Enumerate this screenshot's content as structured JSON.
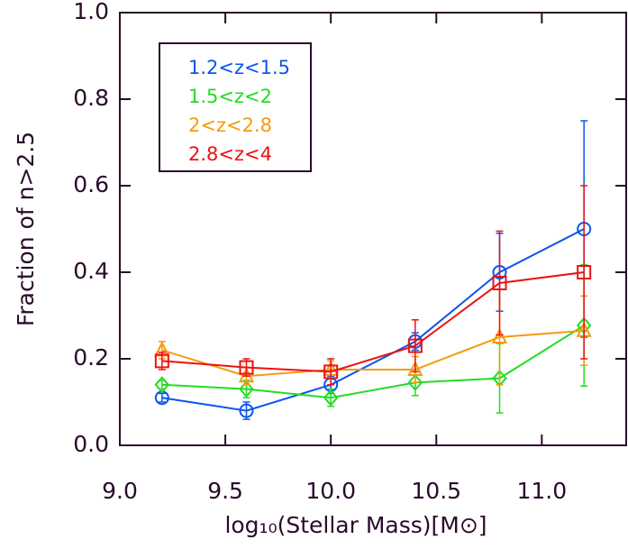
{
  "chart_data": {
    "type": "line",
    "x_label": "log₁₀(Stellar Mass)[M⊙]",
    "y_label": "Fraction of n>2.5",
    "x": [
      9.2,
      9.6,
      10.0,
      10.4,
      10.8,
      11.2
    ],
    "xlim": [
      9.0,
      11.4
    ],
    "ylim": [
      0.0,
      1.0
    ],
    "xticks": [
      {
        "value": 9.0,
        "label": "9.0"
      },
      9.5,
      {
        "value": 10.0,
        "label": "10.0"
      },
      10.5,
      {
        "value": 11.0,
        "label": "11.0"
      }
    ],
    "yticks": [
      {
        "value": 0.0,
        "label": "0.0"
      },
      0.2,
      0.4,
      0.6,
      0.8,
      {
        "value": 1.0,
        "label": "1.0"
      }
    ],
    "legend_position": "upper left",
    "series": [
      {
        "name": "1.2<z<1.5",
        "color": "#0a55ee",
        "marker": "circle",
        "values": [
          0.11,
          0.08,
          0.14,
          0.24,
          0.4,
          0.5
        ],
        "errors": [
          0.01,
          0.02,
          0.02,
          0.02,
          0.09,
          0.25
        ]
      },
      {
        "name": "1.5<z<2",
        "color": "#22dd22",
        "marker": "diamond",
        "values": [
          0.14,
          0.13,
          0.11,
          0.145,
          0.155,
          0.277
        ],
        "errors": [
          0.01,
          0.02,
          0.02,
          0.03,
          0.08,
          0.14
        ]
      },
      {
        "name": "2<z<2.8",
        "color": "#f59a10",
        "marker": "triangle",
        "values": [
          0.22,
          0.16,
          0.175,
          0.175,
          0.25,
          0.265
        ],
        "errors": [
          0.02,
          0.02,
          0.02,
          0.03,
          0.11,
          0.08
        ]
      },
      {
        "name": "2.8<z<4",
        "color": "#ee1111",
        "marker": "square",
        "values": [
          0.195,
          0.18,
          0.17,
          0.23,
          0.375,
          0.4
        ],
        "errors": [
          0.02,
          0.02,
          0.03,
          0.06,
          0.12,
          0.2
        ]
      }
    ]
  }
}
